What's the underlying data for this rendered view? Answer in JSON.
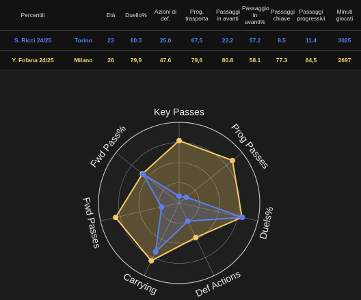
{
  "table": {
    "headers": [
      "Percentili",
      "Età",
      "Duello%",
      "Azioni di def.",
      "Prog. trasporta",
      "Passaggi in avanti",
      "Passaggio in avanti%",
      "Passaggi chiave",
      "Passaggi progressivi",
      "Minuti giocati"
    ],
    "rows": [
      {
        "player": "S. Ricci 24/25",
        "team": "Torino",
        "values": [
          "23",
          "80.3",
          "25.0",
          "67,5",
          "22.2",
          "57.2",
          "8.5",
          "11.4",
          "3025"
        ]
      },
      {
        "player": "Y. Fofana 24/25",
        "team": "Milano",
        "values": [
          "26",
          "79,9",
          "47.6",
          "79,6",
          "80.8",
          "58.1",
          "77.3",
          "84,5",
          "2697"
        ]
      }
    ]
  },
  "colors": {
    "ricci": "#5b7ef0",
    "fofana": "#f3c968",
    "background": "#1b1b1b",
    "table_background": "#121212",
    "grid": "#cfcfcf"
  },
  "chart_data": {
    "type": "radar",
    "axes": [
      "Key Passes",
      "Prog Passes",
      "Duels%",
      "Def Actions",
      "Carrying",
      "Fwd Passes",
      "Fwd Pass%"
    ],
    "rlim": [
      0,
      100
    ],
    "rings": 4,
    "series": [
      {
        "name": "S. Ricci 24/25",
        "values": [
          8.5,
          11.4,
          80.3,
          25.0,
          67.5,
          22.2,
          57.2
        ]
      },
      {
        "name": "Y. Fofana 24/25",
        "values": [
          77.3,
          84.5,
          79.9,
          47.6,
          79.6,
          80.8,
          58.1
        ]
      }
    ]
  }
}
